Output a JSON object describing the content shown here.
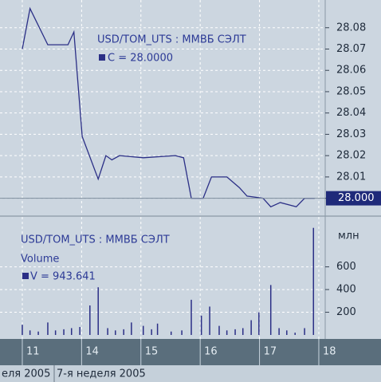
{
  "chart_data": [
    {
      "type": "line",
      "legend_title": "USD/TOM_UTS : ММВБ СЭЛТ",
      "legend_value": "C = 28.0000",
      "last_value_label": "28.000",
      "series": [
        {
          "name": "C",
          "color": "#2b2f86",
          "x": [
            0,
            0.13,
            0.43,
            0.63,
            0.77,
            0.87,
            1.01,
            1.28,
            1.41,
            1.51,
            1.64,
            2.04,
            2.58,
            2.72,
            2.85,
            3.05,
            3.19,
            3.45,
            3.66,
            3.79,
            4.06,
            4.19,
            4.35,
            4.62,
            4.76,
            4.93
          ],
          "values": [
            28.07,
            28.089,
            28.072,
            28.072,
            28.072,
            28.078,
            28.029,
            28.009,
            28.02,
            28.018,
            28.02,
            28.019,
            28.02,
            28.019,
            28.0,
            28.0,
            28.01,
            28.01,
            28.005,
            28.001,
            28.0,
            27.996,
            27.998,
            27.996,
            28.0,
            28.0
          ]
        }
      ],
      "ylim": [
        27.992,
        28.093
      ],
      "yticks": [
        {
          "value": 28,
          "label": "28.00"
        },
        28.01,
        28.02,
        28.03,
        28.04,
        28.05,
        28.06,
        28.07,
        28.08
      ],
      "grid": true
    },
    {
      "type": "bar",
      "legend_title": "USD/TOM_UTS : ММВБ СЭЛТ",
      "legend_series": "Volume",
      "legend_value": "V = 943.641",
      "unit": "млн",
      "series": [
        {
          "name": "V",
          "color": "#2b2f86",
          "x": [
            0,
            0.13,
            0.27,
            0.43,
            0.56,
            0.7,
            0.83,
            0.97,
            1.14,
            1.28,
            1.44,
            1.57,
            1.71,
            1.84,
            2.04,
            2.18,
            2.28,
            2.51,
            2.69,
            2.85,
            3.02,
            3.16,
            3.32,
            3.45,
            3.59,
            3.72,
            3.86,
            3.99,
            4.19,
            4.33,
            4.46,
            4.6,
            4.76,
            4.91
          ],
          "values": [
            90,
            40,
            30,
            110,
            40,
            50,
            60,
            70,
            260,
            420,
            60,
            40,
            50,
            110,
            80,
            50,
            100,
            30,
            40,
            310,
            170,
            250,
            80,
            40,
            50,
            60,
            130,
            200,
            440,
            60,
            40,
            20,
            60,
            943.641
          ]
        }
      ],
      "ylim": [
        0,
        1040
      ],
      "yticks": [
        200,
        400,
        600
      ],
      "grid": true
    }
  ],
  "x_axis": {
    "xlim": [
      -0.376,
      5.108
    ],
    "xticks": [
      {
        "value": 0,
        "label": "11"
      },
      {
        "value": 1,
        "label": "14"
      },
      {
        "value": 2,
        "label": "15"
      },
      {
        "value": 3,
        "label": "16"
      },
      {
        "value": 4,
        "label": "17"
      },
      {
        "value": 5,
        "label": "18"
      }
    ]
  },
  "week_labels": [
    "еля 2005",
    "7-я неделя 2005"
  ]
}
